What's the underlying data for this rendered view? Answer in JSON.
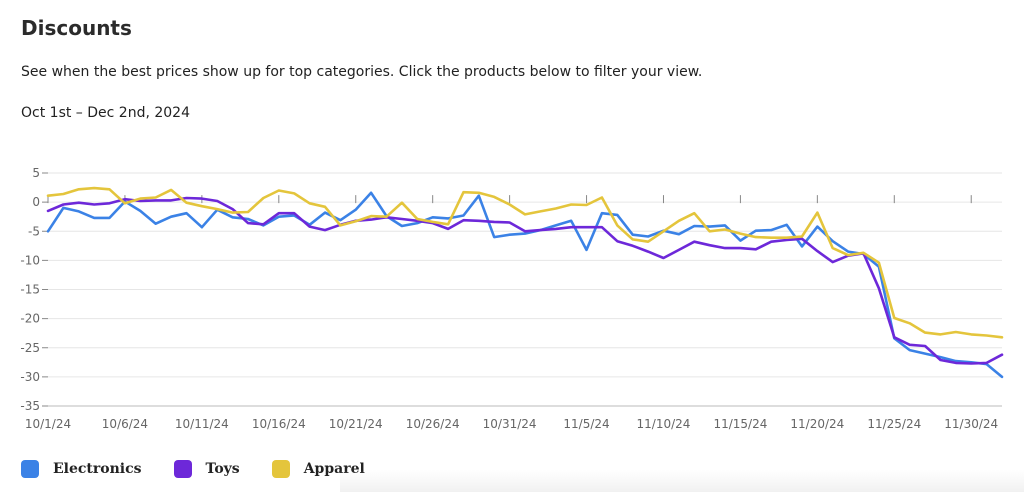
{
  "header": {
    "title": "Discounts",
    "subtitle": "See when the best prices show up for top categories. Click the products below to filter your view.",
    "date_range": "Oct 1st – Dec 2nd, 2024"
  },
  "colors": {
    "Electronics": "#3b82e6",
    "Toys": "#6d28d9",
    "Apparel": "#e4c53c",
    "grid": "#e6e6e6",
    "axis": "#888888"
  },
  "chart_data": {
    "type": "line",
    "title": "",
    "xlabel": "",
    "ylabel": "",
    "ylim": [
      -35,
      5
    ],
    "yticks": [
      5,
      0,
      -5,
      -10,
      -15,
      -20,
      -25,
      -30,
      -35
    ],
    "ytick_labels": [
      "5",
      "0",
      "-5",
      "-10",
      "-15",
      "-20",
      "-25",
      "-30",
      "-35"
    ],
    "x_days": 63,
    "x_tick_days": [
      0,
      5,
      10,
      15,
      20,
      25,
      30,
      35,
      40,
      45,
      50,
      55,
      60
    ],
    "xtick_labels": [
      "10/1/24",
      "10/6/24",
      "10/11/24",
      "10/16/24",
      "10/21/24",
      "10/26/24",
      "10/31/24",
      "11/5/24",
      "11/10/24",
      "11/15/24",
      "11/20/24",
      "11/25/24",
      "11/30/24"
    ],
    "series": [
      {
        "name": "Electronics",
        "values": [
          -5,
          -1,
          -1.6,
          -2.7,
          -2.7,
          0.1,
          -1.5,
          -3.7,
          -2.5,
          -1.9,
          -4.3,
          -1.3,
          -2.6,
          -2.9,
          -4,
          -2.5,
          -2.3,
          -3.9,
          -1.8,
          -3.1,
          -1.3,
          1.6,
          -2.4,
          -4.1,
          -3.6,
          -2.6,
          -2.8,
          -2.3,
          1.1,
          -6,
          -5.6,
          -5.4,
          -4.8,
          -4,
          -3.2,
          -8.2,
          -1.9,
          -2.2,
          -5.6,
          -5.9,
          -4.9,
          -5.5,
          -4.1,
          -4.2,
          -4,
          -6.6,
          -4.9,
          -4.8,
          -3.9,
          -7.6,
          -4.2,
          -6.7,
          -8.5,
          -8.9,
          -11.1,
          -23.4,
          -25.4,
          -26,
          -26.6,
          -27.3,
          -27.5,
          -27.8,
          -30
        ]
      },
      {
        "name": "Toys",
        "values": [
          -1.5,
          -0.4,
          -0.1,
          -0.4,
          -0.2,
          0.5,
          0.2,
          0.3,
          0.3,
          0.7,
          0.6,
          0.2,
          -1.2,
          -3.6,
          -3.8,
          -1.9,
          -1.9,
          -4.2,
          -4.8,
          -3.9,
          -3.2,
          -3,
          -2.6,
          -2.9,
          -3.2,
          -3.6,
          -4.6,
          -3.1,
          -3.2,
          -3.4,
          -3.5,
          -5,
          -4.8,
          -4.6,
          -4.3,
          -4.3,
          -4.3,
          -6.7,
          -7.5,
          -8.5,
          -9.6,
          -8.2,
          -6.8,
          -7.4,
          -7.9,
          -7.9,
          -8.1,
          -6.8,
          -6.5,
          -6.3,
          -8.4,
          -10.3,
          -9.2,
          -8.8,
          -14.8,
          -23.2,
          -24.5,
          -24.7,
          -27.1,
          -27.6,
          -27.7,
          -27.6,
          -26.2
        ]
      },
      {
        "name": "Apparel",
        "values": [
          1.1,
          1.4,
          2.2,
          2.4,
          2.2,
          -0.2,
          0.6,
          0.8,
          2.1,
          -0.1,
          -0.7,
          -1.2,
          -1.8,
          -1.7,
          0.7,
          2,
          1.5,
          -0.2,
          -0.8,
          -4,
          -3.3,
          -2.4,
          -2.5,
          -0.1,
          -2.9,
          -3.4,
          -3.8,
          1.7,
          1.6,
          0.9,
          -0.4,
          -2.1,
          -1.6,
          -1.1,
          -0.4,
          -0.5,
          0.8,
          -4,
          -6.4,
          -6.8,
          -5,
          -3.2,
          -1.9,
          -5,
          -4.7,
          -5.4,
          -6,
          -6.1,
          -6.1,
          -5.9,
          -1.8,
          -7.9,
          -9.1,
          -8.7,
          -10.4,
          -19.9,
          -20.8,
          -22.4,
          -22.7,
          -22.3,
          -22.7,
          -22.9,
          -23.2
        ]
      }
    ],
    "legend": [
      "Electronics",
      "Toys",
      "Apparel"
    ],
    "legend_position": "bottom-left",
    "grid": true
  }
}
